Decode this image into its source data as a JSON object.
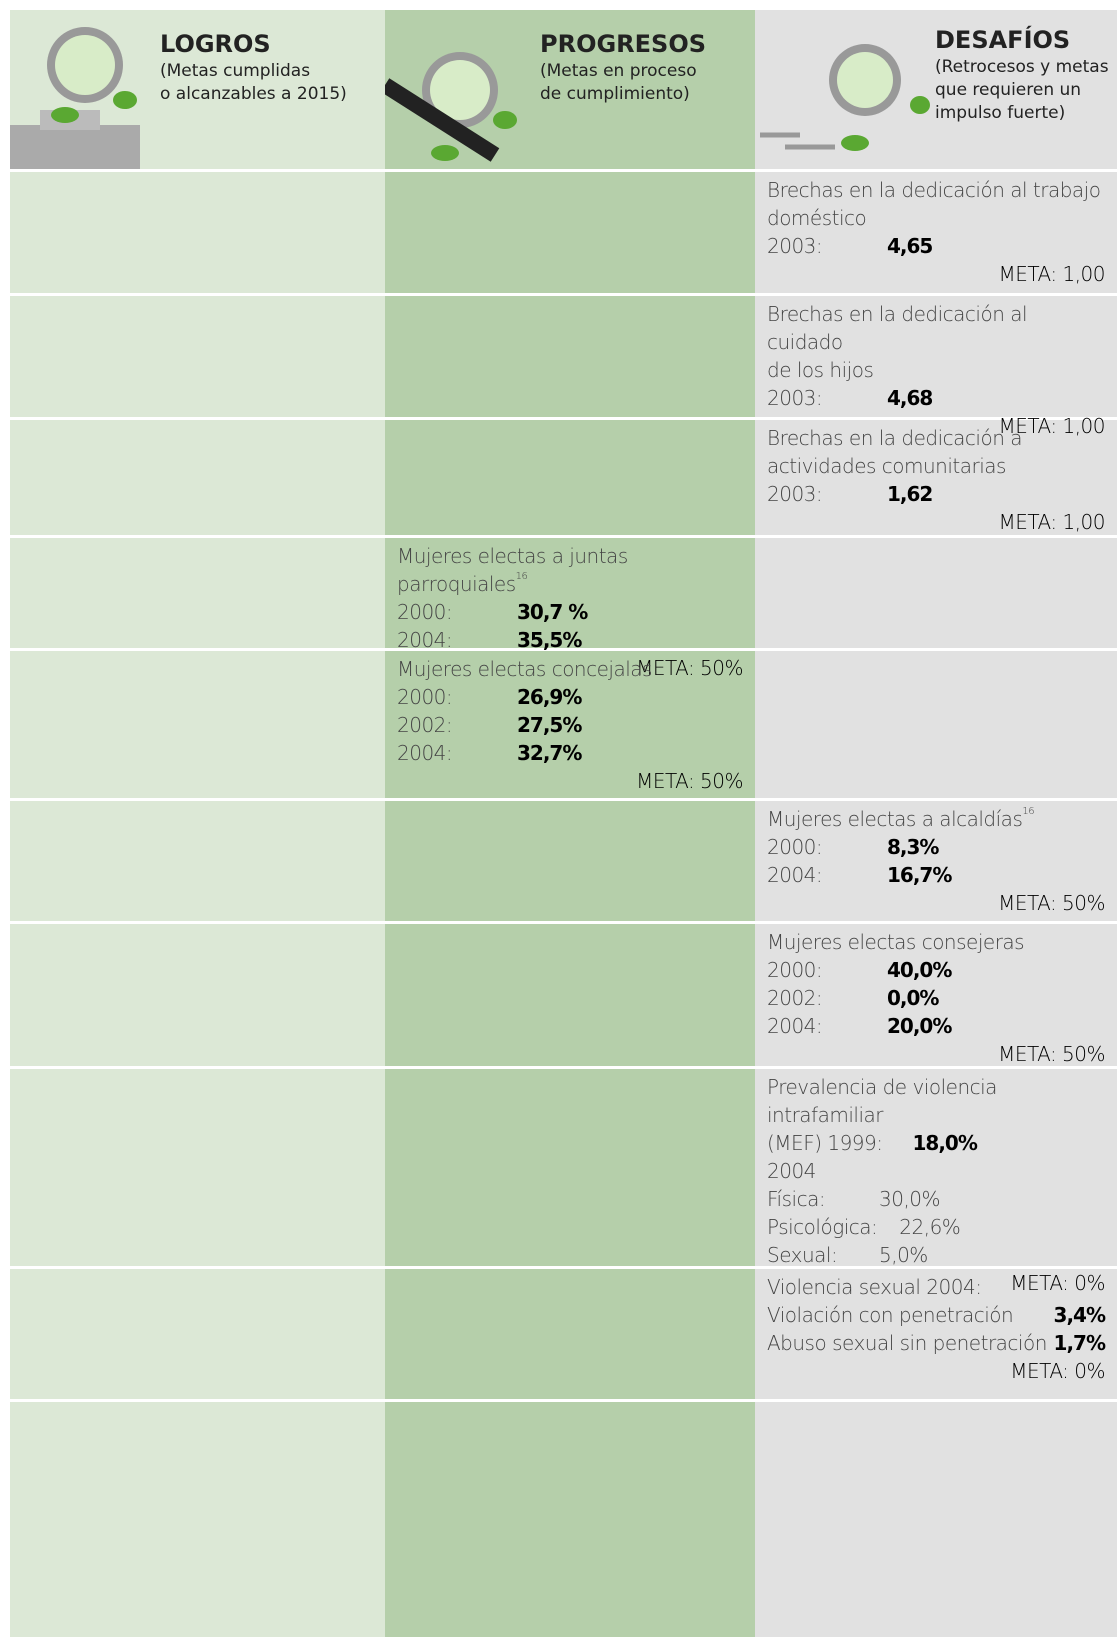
{
  "header": {
    "columns": [
      {
        "title": "LOGROS",
        "subtitle": [
          "(Metas cumplidas",
          "o alcanzables a 2015)"
        ]
      },
      {
        "title": "PROGRESOS",
        "subtitle": [
          "(Metas en proceso",
          "de cumplimiento)"
        ]
      },
      {
        "title": "DESAFÍOS",
        "subtitle": [
          "(Retrocesos y metas",
          "que requieren un",
          "impulso fuerte)"
        ]
      }
    ]
  },
  "rows": [
    {
      "desafios": {
        "title": [
          "Brechas en la dedicación al trabajo",
          "doméstico"
        ],
        "lines": [
          {
            "label": "2003:",
            "value": "4,65"
          }
        ],
        "meta": "META: 1,00"
      }
    },
    {
      "desafios": {
        "title": [
          "Brechas en la dedicación al cuidado",
          "de los hijos"
        ],
        "lines": [
          {
            "label": "2003:",
            "value": "4,68"
          }
        ],
        "meta": "META: 1,00"
      }
    },
    {
      "desafios": {
        "title": [
          "Brechas en la dedicación a",
          "actividades comunitarias"
        ],
        "lines": [
          {
            "label": "2003:",
            "value": "1,62"
          }
        ],
        "meta": "META: 1,00"
      }
    },
    {
      "progresos": {
        "title": [
          "Mujeres electas a juntas parroquiales"
        ],
        "note": "16",
        "lines": [
          {
            "label": "2000:",
            "value": "30,7 %"
          },
          {
            "label": "2004:",
            "value": "35,5%"
          }
        ],
        "meta": "META:  50%"
      }
    },
    {
      "progresos": {
        "title": [
          "Mujeres electas concejalas"
        ],
        "lines": [
          {
            "label": "2000:",
            "value": "26,9%"
          },
          {
            "label": "2002:",
            "value": "27,5%"
          },
          {
            "label": "2004:",
            "value": "32,7%"
          }
        ],
        "meta": "META:  50%"
      }
    },
    {
      "desafios": {
        "title": [
          "Mujeres electas a alcaldías"
        ],
        "note": "16",
        "lines": [
          {
            "label": "2000:",
            "value": "8,3%"
          },
          {
            "label": "2004:",
            "value": "16,7%"
          }
        ],
        "meta": "META:  50%"
      }
    },
    {
      "desafios": {
        "title": [
          "Mujeres electas consejeras"
        ],
        "lines": [
          {
            "label": "2000:",
            "value": "40,0%"
          },
          {
            "label": "2002:",
            "value": "0,0%"
          },
          {
            "label": "2004:",
            "value": "20,0%"
          }
        ],
        "meta": "META:  50%"
      }
    },
    {
      "desafios": {
        "title": [
          "Prevalencia de violencia intrafamiliar"
        ],
        "lines": [
          {
            "label": "(MEF) 1999:",
            "value": "18,0%"
          },
          {
            "label": "2004"
          },
          {
            "label": "Física:",
            "plain": "30,0%"
          },
          {
            "label": "Psicológica:",
            "plain": "22,6%"
          },
          {
            "label": "Sexual:",
            "plain": "5,0%"
          }
        ],
        "meta": "META:  0%"
      }
    },
    {
      "desafios": {
        "title": [
          "Violencia sexual 2004:"
        ],
        "lines": [
          {
            "label": "Violación con penetración",
            "value": "3,4%"
          },
          {
            "label": "Abuso sexual sin penetración",
            "value": "1,7%"
          }
        ],
        "meta": "META:  0%"
      }
    },
    {}
  ]
}
